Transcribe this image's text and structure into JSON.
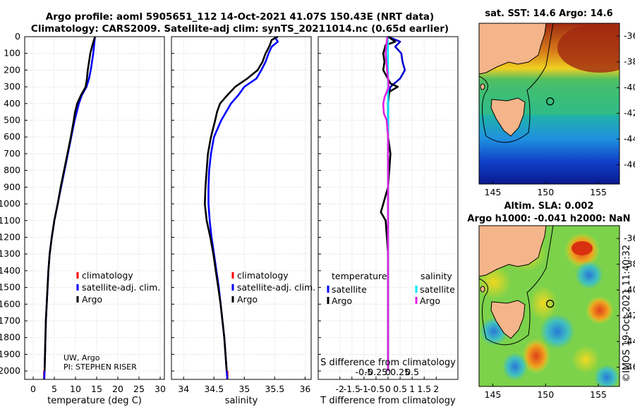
{
  "title_line1": "Argo profile: aoml 5905651_112 14-Oct-2021 41.07S 150.43E (NRT data)",
  "title_line2": "Climatology: CARS2009. Satellite-adj clim: synTS_20211014.nc (0.65d earlier)",
  "chart_data": [
    {
      "type": "line",
      "name": "temperature",
      "xlabel": "temperature (deg C)",
      "xlim": [
        -2,
        31
      ],
      "ylim": [
        0,
        2050
      ],
      "xticks": [
        "0",
        "5",
        "10",
        "15",
        "20",
        "25",
        "30"
      ],
      "xtick_values": [
        0,
        5,
        10,
        15,
        20,
        25,
        30
      ],
      "yticks": [
        "0",
        "100",
        "200",
        "300",
        "400",
        "500",
        "600",
        "700",
        "800",
        "900",
        "1000",
        "1100",
        "1200",
        "1300",
        "1400",
        "1500",
        "1600",
        "1700",
        "1800",
        "1900",
        "2000"
      ],
      "ytick_values": [
        0,
        100,
        200,
        300,
        400,
        500,
        600,
        700,
        800,
        900,
        1000,
        1100,
        1200,
        1300,
        1400,
        1500,
        1600,
        1700,
        1800,
        1900,
        2000
      ],
      "legend": [
        "climatology",
        "satellite-adj. clim.",
        "Argo"
      ],
      "annotation": [
        "UW, Argo",
        "PI: STEPHEN RISER"
      ],
      "series": [
        {
          "name": "climatology",
          "color": "#ff0000",
          "depth": [
            2000,
            2050
          ],
          "values": [
            2.6,
            2.6
          ]
        },
        {
          "name": "satellite-adj. clim.",
          "color": "#0000ff",
          "depth": [
            0,
            50,
            100,
            150,
            200,
            250,
            300,
            350,
            400,
            450,
            500,
            600,
            700,
            800,
            900,
            1000,
            1100,
            1200,
            1300,
            1400,
            1500,
            1600,
            1700,
            1800,
            1900,
            2000,
            2050
          ],
          "values": [
            14.6,
            14.4,
            14.2,
            13.9,
            13.6,
            13.2,
            12.6,
            11.5,
            10.8,
            10.3,
            9.8,
            9.0,
            8.2,
            7.4,
            6.6,
            5.8,
            5.0,
            4.4,
            3.9,
            3.6,
            3.4,
            3.2,
            3.0,
            2.9,
            2.8,
            2.7,
            2.6
          ]
        },
        {
          "name": "Argo",
          "color": "#000000",
          "depth": [
            0,
            50,
            100,
            150,
            200,
            250,
            300,
            350,
            400,
            450,
            500,
            600,
            700,
            800,
            900,
            1000,
            1100,
            1200,
            1300,
            1400,
            1500,
            1600,
            1700,
            1800,
            1900,
            2000
          ],
          "values": [
            14.6,
            14.0,
            13.5,
            13.2,
            12.9,
            12.7,
            12.4,
            11.3,
            10.4,
            9.9,
            9.6,
            8.9,
            8.1,
            7.3,
            6.5,
            5.8,
            5.0,
            4.4,
            3.9,
            3.6,
            3.4,
            3.2,
            3.0,
            2.9,
            2.8,
            2.7
          ]
        }
      ]
    },
    {
      "type": "line",
      "name": "salinity",
      "xlabel": "salinity",
      "xlim": [
        33.8,
        36.1
      ],
      "ylim": [
        0,
        2050
      ],
      "xticks": [
        "34",
        "34.5",
        "35",
        "35.5",
        "36"
      ],
      "xtick_values": [
        34,
        34.5,
        35,
        35.5,
        36
      ],
      "legend": [
        "climatology",
        "satellite-adj. clim.",
        "Argo"
      ],
      "series": [
        {
          "name": "climatology",
          "color": "#ff0000",
          "depth": [
            2000,
            2050
          ],
          "values": [
            34.72,
            34.72
          ]
        },
        {
          "name": "satellite-adj. clim.",
          "color": "#0000ff",
          "depth": [
            0,
            30,
            60,
            100,
            150,
            200,
            250,
            300,
            350,
            400,
            450,
            500,
            600,
            700,
            800,
            900,
            1000,
            1100,
            1200,
            1300,
            1400,
            1500,
            1600,
            1700,
            1800,
            1900,
            2000,
            2050
          ],
          "values": [
            35.5,
            35.55,
            35.45,
            35.4,
            35.35,
            35.28,
            35.2,
            35.0,
            34.9,
            34.78,
            34.7,
            34.62,
            34.5,
            34.45,
            34.42,
            34.41,
            34.41,
            34.43,
            34.46,
            34.5,
            34.54,
            34.58,
            34.61,
            34.64,
            34.67,
            34.69,
            34.71,
            34.72
          ]
        },
        {
          "name": "Argo",
          "color": "#000000",
          "depth": [
            0,
            20,
            50,
            80,
            100,
            150,
            200,
            250,
            300,
            350,
            400,
            450,
            500,
            600,
            700,
            800,
            900,
            1000,
            1100,
            1200,
            1300,
            1400,
            1500,
            1600,
            1700,
            1800,
            1900,
            2000
          ],
          "values": [
            35.55,
            35.45,
            35.42,
            35.38,
            35.35,
            35.3,
            35.22,
            35.05,
            34.85,
            34.72,
            34.6,
            34.55,
            34.52,
            34.45,
            34.4,
            34.38,
            34.36,
            34.35,
            34.38,
            34.44,
            34.49,
            34.53,
            34.57,
            34.61,
            34.64,
            34.67,
            34.69,
            34.71
          ]
        }
      ]
    },
    {
      "type": "line",
      "name": "difference",
      "xlabel": "T difference from climatology",
      "xlabel2": "S difference from climatology",
      "xlim": [
        -2.9,
        2.9
      ],
      "ylim": [
        0,
        2050
      ],
      "xticks": [
        "-2",
        "-1.5",
        "-1",
        "-0.5",
        "0",
        "0.5",
        "1",
        "1.5",
        "2"
      ],
      "xtick_values": [
        -2,
        -1.5,
        -1,
        -0.5,
        0,
        0.5,
        1,
        1.5,
        2
      ],
      "s_ticks": [
        "-0.5",
        "-0.25",
        "0",
        "0.25",
        "0.5"
      ],
      "s_tick_values": [
        -0.5,
        -0.25,
        0,
        0.25,
        0.5
      ],
      "legend_temp": [
        "temperature",
        "satellite",
        "Argo"
      ],
      "legend_sal": [
        "salinity",
        "satellite",
        "Argo"
      ],
      "series": [
        {
          "name": "T satellite",
          "color": "#0000cc",
          "depth": [
            0,
            30,
            60,
            100,
            150,
            200,
            250,
            300,
            350,
            400,
            500,
            600,
            800,
            1000,
            1200,
            1400,
            1600,
            1800,
            2000
          ],
          "values": [
            0.0,
            0.5,
            0.3,
            0.55,
            0.6,
            0.7,
            0.5,
            0.1,
            0.02,
            0.0,
            0.0,
            0.0,
            0.0,
            0.0,
            0.0,
            0.0,
            0.0,
            0.0,
            0.0
          ]
        },
        {
          "name": "T Argo",
          "color": "#000000",
          "depth": [
            0,
            30,
            50,
            100,
            150,
            200,
            280,
            300,
            330,
            400,
            500,
            600,
            700,
            800,
            900,
            1000,
            1050,
            1100,
            1200,
            1300,
            1400,
            1500,
            1600,
            1800,
            2000
          ],
          "values": [
            0.0,
            0.3,
            -0.1,
            -0.2,
            -0.15,
            -0.2,
            0.1,
            0.4,
            0.05,
            0.0,
            0.0,
            0.0,
            0.1,
            0.05,
            0.0,
            -0.2,
            -0.3,
            -0.1,
            -0.05,
            0.0,
            0.0,
            0.0,
            0.0,
            0.0,
            0.0
          ]
        },
        {
          "name": "S satellite",
          "color": "#00e5ff",
          "depth": [
            0,
            50,
            100,
            200,
            300,
            400,
            600,
            800,
            1000,
            1200,
            1500,
            2000
          ],
          "values": [
            -0.02,
            0.0,
            -0.01,
            0.0,
            0.0,
            0.0,
            0.0,
            0.0,
            0.0,
            0.0,
            0.0,
            0.0
          ]
        },
        {
          "name": "S Argo",
          "color": "#e020e0",
          "depth": [
            0,
            50,
            100,
            150,
            200,
            250,
            300,
            330,
            360,
            400,
            430,
            460,
            500,
            600,
            800,
            1000,
            1200,
            1500,
            2000
          ],
          "values": [
            -0.03,
            -0.07,
            -0.1,
            -0.07,
            -0.04,
            0.0,
            0.02,
            -0.05,
            -0.14,
            -0.2,
            -0.19,
            -0.17,
            -0.06,
            0.0,
            0.0,
            0.0,
            0.0,
            0.0,
            0.0
          ]
        }
      ]
    }
  ],
  "maps": {
    "top": {
      "title": "sat. SST: 14.6 Argo: 14.6",
      "yticks": [
        "-36",
        "-38",
        "-40",
        "-42",
        "-44",
        "-46"
      ],
      "xticks": [
        "145",
        "150",
        "155"
      ]
    },
    "bottom": {
      "title1": "Altim. SLA: 0.002",
      "title2": "Argo h1000: -0.041 h2000: NaN",
      "yticks": [
        "-36",
        "-38",
        "-40",
        "-42",
        "-44",
        "-46"
      ],
      "xticks": [
        "145",
        "150",
        "155"
      ]
    }
  },
  "credit": "©IMOS 19-Oct-2021 11:40:32",
  "colors": {
    "climatology": "#ff0000",
    "satellite": "#0000ff",
    "argo": "#000000",
    "s_satellite": "#00e5ff",
    "s_argo": "#e020e0",
    "land": "#f5b58a"
  }
}
